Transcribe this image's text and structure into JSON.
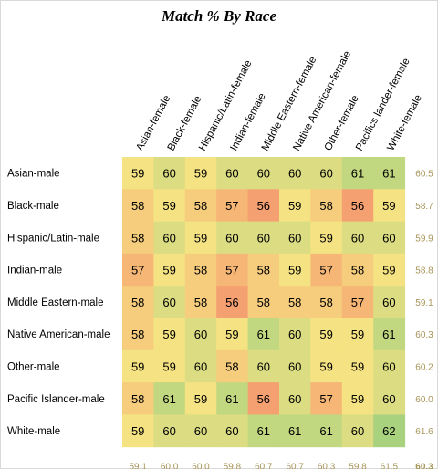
{
  "chart_data": {
    "type": "heatmap",
    "title": "Match % By Race",
    "columns": [
      "Asian-female",
      "Black-female",
      "Hispanic/Latin-female",
      "Indian-female",
      "Middle Eastern-female",
      "Native American-female",
      "Other-female",
      "Pacifics lander-female",
      "White-female"
    ],
    "rows": [
      "Asian-male",
      "Black-male",
      "Hispanic/Latin-male",
      "Indian-male",
      "Middle Eastern-male",
      "Native American-male",
      "Other-male",
      "Pacific Islander-male",
      "White-male"
    ],
    "values": [
      [
        59,
        60,
        59,
        60,
        60,
        60,
        60,
        61,
        61
      ],
      [
        58,
        59,
        58,
        57,
        56,
        59,
        58,
        56,
        59
      ],
      [
        58,
        60,
        59,
        60,
        60,
        60,
        59,
        60,
        60
      ],
      [
        57,
        59,
        58,
        57,
        58,
        59,
        57,
        58,
        59
      ],
      [
        58,
        60,
        58,
        56,
        58,
        58,
        58,
        57,
        60
      ],
      [
        58,
        59,
        60,
        59,
        61,
        60,
        59,
        59,
        61
      ],
      [
        59,
        59,
        60,
        58,
        60,
        60,
        59,
        59,
        60
      ],
      [
        58,
        61,
        59,
        61,
        56,
        60,
        57,
        59,
        60
      ],
      [
        59,
        60,
        60,
        60,
        61,
        61,
        61,
        60,
        62
      ]
    ],
    "row_totals": [
      "60.5",
      "58.7",
      "59.9",
      "58.8",
      "59.1",
      "60.3",
      "60.2",
      "60.0",
      "61.6"
    ],
    "col_totals": [
      "59.1",
      "60.0",
      "60.0",
      "59.8",
      "60.7",
      "60.7",
      "60.3",
      "59.8",
      "61.5"
    ],
    "grand_total": "60.3",
    "color_scale": {
      "low": "#f5a070",
      "mid": "#f5e383",
      "high": "#a9d27f",
      "min": 56,
      "max": 62
    },
    "total_color": "#a89558"
  }
}
